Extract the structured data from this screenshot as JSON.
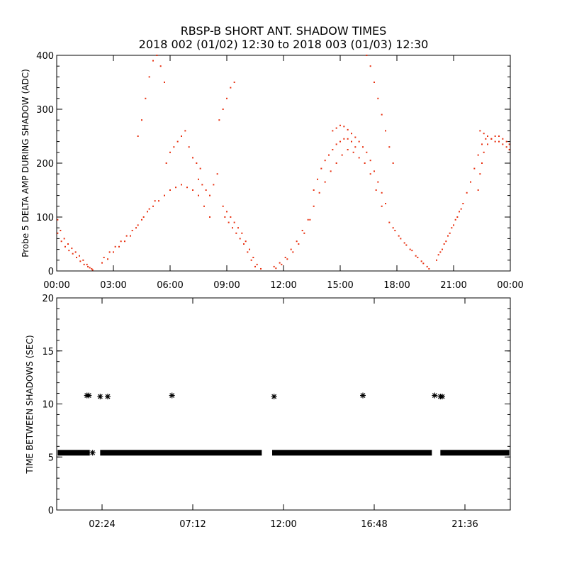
{
  "chart_data": [
    {
      "type": "scatter",
      "title": "RBSP-B SHORT ANT. SHADOW TIMES",
      "subtitle": "2018 002 (01/02) 12:30 to 2018 003 (01/03) 12:30",
      "ylabel": "Probe 5 DELTA AMP DURING SHADOW (ADC)",
      "xlabel": "",
      "xlim": [
        0,
        24
      ],
      "ylim": [
        0,
        400
      ],
      "x_tick_values": [
        0,
        3,
        6,
        9,
        12,
        15,
        18,
        21,
        24
      ],
      "x_tick_labels": [
        "00:00",
        "03:00",
        "06:00",
        "09:00",
        "12:00",
        "15:00",
        "18:00",
        "21:00",
        "00:00"
      ],
      "y_tick_values": [
        0,
        100,
        200,
        300,
        400
      ],
      "y_tick_labels": [
        "0",
        "100",
        "200",
        "300",
        "400"
      ],
      "marker_color": "#e83010",
      "marker": "dot",
      "series": [
        {
          "x": [
            0.05,
            0.2,
            0.4,
            0.6,
            0.8,
            1.0,
            1.2,
            1.4,
            1.6,
            1.75,
            1.9,
            0.05,
            0.25,
            0.45,
            0.65,
            0.85,
            1.05,
            1.25,
            1.45,
            1.65,
            1.85,
            2.4,
            2.7,
            3.0,
            3.3,
            3.6,
            3.9,
            4.2,
            4.5,
            4.8,
            5.1,
            5.4,
            5.7,
            6.0,
            6.3,
            6.6,
            6.9,
            7.2,
            7.5,
            7.8,
            8.1,
            2.5,
            2.8,
            3.1,
            3.4,
            3.7,
            4.0,
            4.3,
            4.6,
            4.9,
            5.2,
            4.3,
            4.5,
            4.7,
            4.9,
            5.1,
            5.3,
            5.5,
            5.7,
            5.8,
            6.0,
            6.2,
            6.4,
            6.6,
            6.8,
            7.0,
            7.2,
            7.4,
            7.6,
            7.5,
            7.7,
            7.9,
            8.1,
            8.3,
            8.5,
            8.6,
            8.8,
            9.0,
            9.2,
            9.4,
            8.8,
            9.0,
            9.2,
            9.4,
            9.6,
            9.8,
            10.0,
            10.2,
            10.4,
            10.6,
            10.8,
            8.9,
            9.1,
            9.3,
            9.5,
            9.7,
            9.9,
            10.1,
            10.3,
            10.5,
            11.5,
            11.8,
            12.1,
            12.4,
            12.7,
            13.0,
            13.3,
            13.6,
            13.9,
            14.2,
            14.5,
            14.8,
            15.1,
            15.4,
            15.7,
            16.0,
            16.3,
            16.6,
            16.9,
            17.2,
            11.6,
            11.9,
            12.2,
            12.5,
            12.8,
            13.1,
            13.4,
            13.6,
            13.8,
            14.0,
            14.2,
            14.4,
            14.6,
            14.8,
            15.0,
            15.2,
            15.4,
            15.6,
            15.8,
            14.6,
            14.8,
            15.0,
            15.2,
            15.4,
            15.6,
            15.8,
            16.0,
            16.2,
            16.4,
            16.6,
            16.8,
            17.0,
            17.2,
            17.4,
            16.4,
            16.6,
            16.8,
            17.0,
            17.2,
            17.4,
            17.6,
            17.8,
            17.6,
            17.9,
            18.2,
            18.5,
            18.8,
            19.1,
            19.4,
            19.7,
            17.8,
            18.1,
            18.4,
            18.7,
            19.0,
            19.3,
            19.6,
            20.1,
            20.3,
            20.5,
            20.7,
            20.9,
            21.1,
            21.3,
            21.5,
            21.7,
            21.9,
            22.1,
            22.3,
            22.5,
            22.7,
            20.2,
            20.4,
            20.6,
            20.8,
            21.0,
            21.2,
            21.4,
            22.3,
            22.4,
            22.5,
            22.6,
            22.8,
            23.0,
            23.2,
            23.4,
            23.6,
            23.8,
            23.95,
            22.4,
            22.6,
            22.8,
            23.0,
            23.2,
            23.4,
            23.6,
            23.8,
            23.95
          ],
          "y": [
            95,
            75,
            60,
            50,
            42,
            35,
            28,
            20,
            12,
            6,
            2,
            70,
            55,
            45,
            38,
            32,
            25,
            18,
            12,
            8,
            4,
            15,
            22,
            35,
            45,
            55,
            65,
            80,
            95,
            110,
            120,
            130,
            140,
            150,
            155,
            160,
            155,
            150,
            140,
            120,
            100,
            25,
            35,
            45,
            55,
            65,
            75,
            85,
            100,
            115,
            130,
            250,
            280,
            320,
            360,
            390,
            400,
            380,
            350,
            200,
            220,
            230,
            240,
            250,
            260,
            230,
            210,
            200,
            190,
            170,
            160,
            150,
            140,
            160,
            180,
            280,
            300,
            320,
            340,
            350,
            120,
            110,
            100,
            90,
            80,
            70,
            55,
            40,
            25,
            12,
            4,
            100,
            90,
            80,
            70,
            60,
            50,
            35,
            20,
            8,
            8,
            15,
            25,
            40,
            55,
            75,
            95,
            120,
            145,
            165,
            185,
            200,
            215,
            225,
            220,
            210,
            200,
            180,
            150,
            120,
            5,
            12,
            22,
            35,
            50,
            70,
            95,
            150,
            170,
            190,
            205,
            215,
            225,
            235,
            240,
            245,
            245,
            240,
            230,
            260,
            265,
            270,
            268,
            262,
            255,
            248,
            240,
            230,
            220,
            205,
            185,
            165,
            145,
            125,
            400,
            380,
            350,
            320,
            290,
            260,
            230,
            200,
            90,
            75,
            60,
            48,
            38,
            25,
            14,
            4,
            80,
            65,
            52,
            40,
            28,
            18,
            8,
            20,
            35,
            50,
            65,
            80,
            95,
            110,
            125,
            145,
            165,
            190,
            215,
            235,
            245,
            30,
            40,
            55,
            70,
            85,
            100,
            115,
            150,
            180,
            200,
            220,
            235,
            245,
            250,
            250,
            245,
            240,
            235,
            260,
            255,
            250,
            245,
            240,
            240,
            235,
            230,
            225
          ]
        }
      ]
    },
    {
      "type": "scatter",
      "title": "",
      "ylabel": "TIME BETWEEN SHADOWS (SEC)",
      "xlabel": "",
      "xlim": [
        0,
        24
      ],
      "ylim": [
        0,
        20
      ],
      "x_tick_values": [
        2.4,
        7.2,
        12.0,
        16.8,
        21.6
      ],
      "x_tick_labels": [
        "02:24",
        "07:12",
        "12:00",
        "16:48",
        "21:36"
      ],
      "y_tick_values": [
        0,
        5,
        10,
        15,
        20
      ],
      "y_tick_labels": [
        "0",
        "5",
        "10",
        "15",
        "20"
      ],
      "marker_color": "#000000",
      "marker": "asterisk",
      "baseline_value": 5.4,
      "baseline_segments": [
        [
          0.05,
          1.75
        ],
        [
          2.3,
          10.85
        ],
        [
          11.4,
          19.85
        ],
        [
          20.3,
          23.95
        ]
      ],
      "series": [
        {
          "x": [
            1.6,
            1.7,
            2.3,
            2.7,
            6.1,
            11.5,
            16.2,
            20.0,
            20.3,
            20.4,
            1.9
          ],
          "y": [
            10.8,
            10.8,
            10.7,
            10.7,
            10.8,
            10.7,
            10.8,
            10.8,
            10.7,
            10.7,
            5.4
          ]
        }
      ]
    }
  ]
}
